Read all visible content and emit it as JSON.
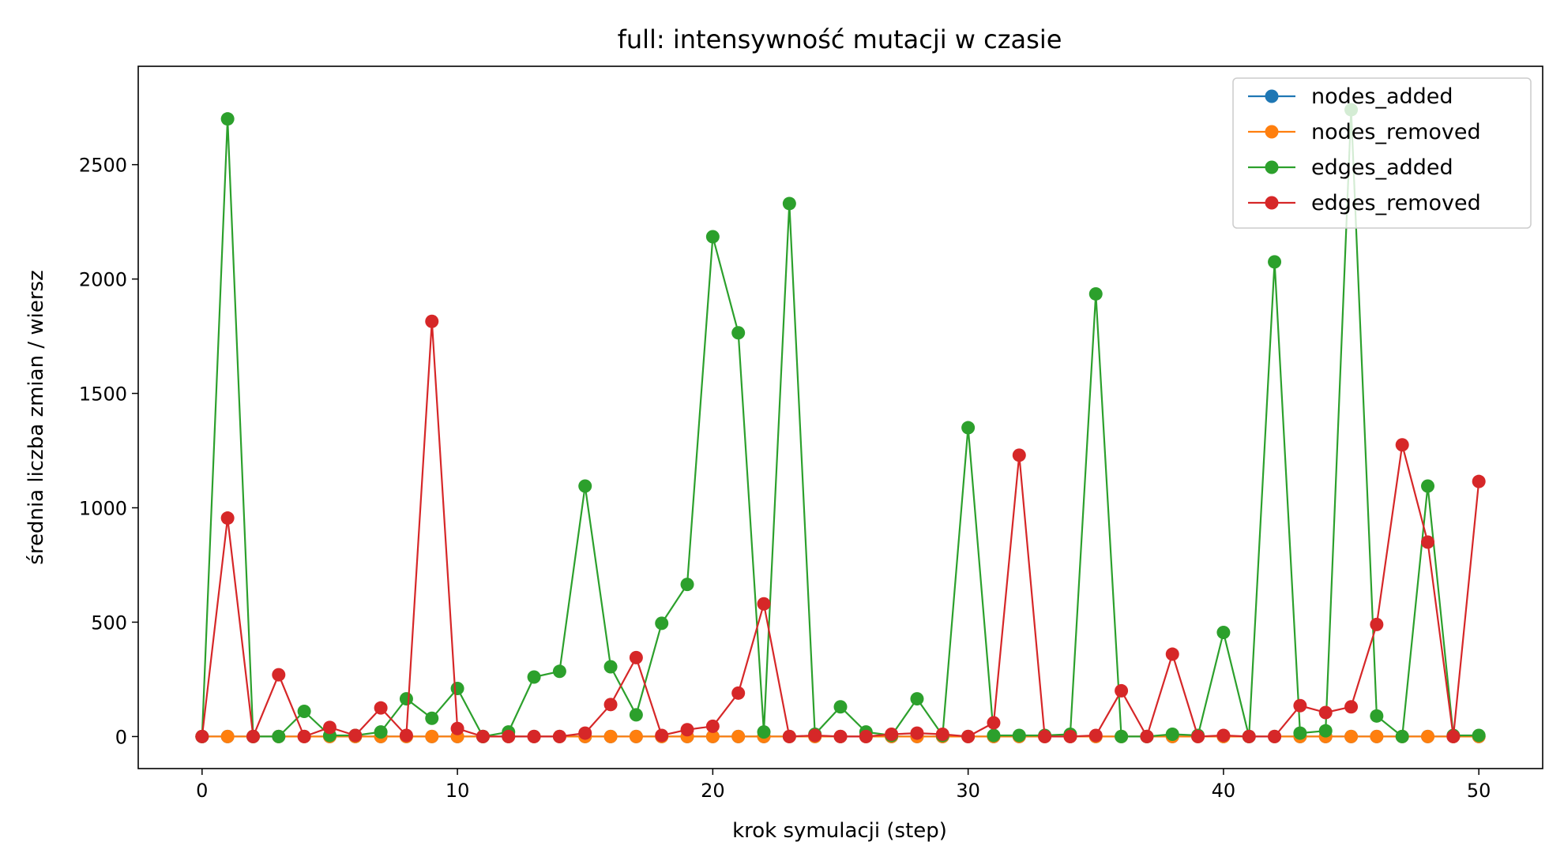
{
  "chart_data": {
    "type": "line",
    "title": "full: intensywność mutacji w czasie",
    "xlabel": "krok symulacji (step)",
    "ylabel": "średnia liczba zmian / wiersz",
    "xlim": [
      -2.5,
      52.5
    ],
    "ylim": [
      -140,
      2930
    ],
    "xticks": [
      0,
      10,
      20,
      30,
      40,
      50
    ],
    "yticks": [
      0,
      500,
      1000,
      1500,
      2000,
      2500
    ],
    "legend_position": "top-right",
    "grid": false,
    "x": [
      0,
      1,
      2,
      3,
      4,
      5,
      6,
      7,
      8,
      9,
      10,
      11,
      12,
      13,
      14,
      15,
      16,
      17,
      18,
      19,
      20,
      21,
      22,
      23,
      24,
      25,
      26,
      27,
      28,
      29,
      30,
      31,
      32,
      33,
      34,
      35,
      36,
      37,
      38,
      39,
      40,
      41,
      42,
      43,
      44,
      45,
      46,
      47,
      48,
      49,
      50
    ],
    "series": [
      {
        "name": "nodes_added",
        "color": "#1f77b4",
        "values": [
          0,
          0,
          0,
          0,
          0,
          0,
          0,
          0,
          0,
          0,
          0,
          0,
          0,
          0,
          0,
          0,
          0,
          0,
          0,
          0,
          0,
          0,
          0,
          0,
          0,
          0,
          0,
          0,
          0,
          0,
          0,
          0,
          0,
          0,
          0,
          0,
          0,
          0,
          0,
          0,
          0,
          0,
          0,
          0,
          0,
          0,
          0,
          0,
          0,
          0,
          0
        ]
      },
      {
        "name": "nodes_removed",
        "color": "#ff7f0e",
        "values": [
          0,
          0,
          0,
          0,
          0,
          0,
          0,
          0,
          0,
          0,
          0,
          0,
          0,
          0,
          0,
          0,
          0,
          0,
          0,
          0,
          0,
          0,
          0,
          0,
          0,
          0,
          0,
          0,
          0,
          0,
          0,
          0,
          0,
          0,
          0,
          0,
          0,
          0,
          0,
          0,
          0,
          0,
          0,
          0,
          0,
          0,
          0,
          0,
          0,
          0,
          0
        ]
      },
      {
        "name": "edges_added",
        "color": "#2ca02c",
        "values": [
          0,
          2700,
          0,
          0,
          110,
          5,
          5,
          20,
          165,
          80,
          210,
          0,
          20,
          260,
          285,
          1095,
          305,
          95,
          495,
          665,
          2185,
          1765,
          20,
          2330,
          10,
          130,
          20,
          5,
          165,
          5,
          1350,
          5,
          5,
          5,
          10,
          1935,
          0,
          0,
          10,
          5,
          455,
          0,
          2075,
          15,
          25,
          2740,
          90,
          0,
          1095,
          5,
          5
        ]
      },
      {
        "name": "edges_removed",
        "color": "#d62728",
        "values": [
          0,
          955,
          0,
          270,
          0,
          40,
          5,
          125,
          5,
          1815,
          35,
          0,
          0,
          0,
          0,
          15,
          140,
          345,
          5,
          30,
          45,
          190,
          580,
          0,
          5,
          0,
          0,
          10,
          15,
          10,
          0,
          60,
          1230,
          0,
          0,
          5,
          200,
          0,
          360,
          0,
          5,
          0,
          0,
          135,
          105,
          130,
          490,
          1275,
          850,
          0,
          1115
        ]
      }
    ]
  }
}
